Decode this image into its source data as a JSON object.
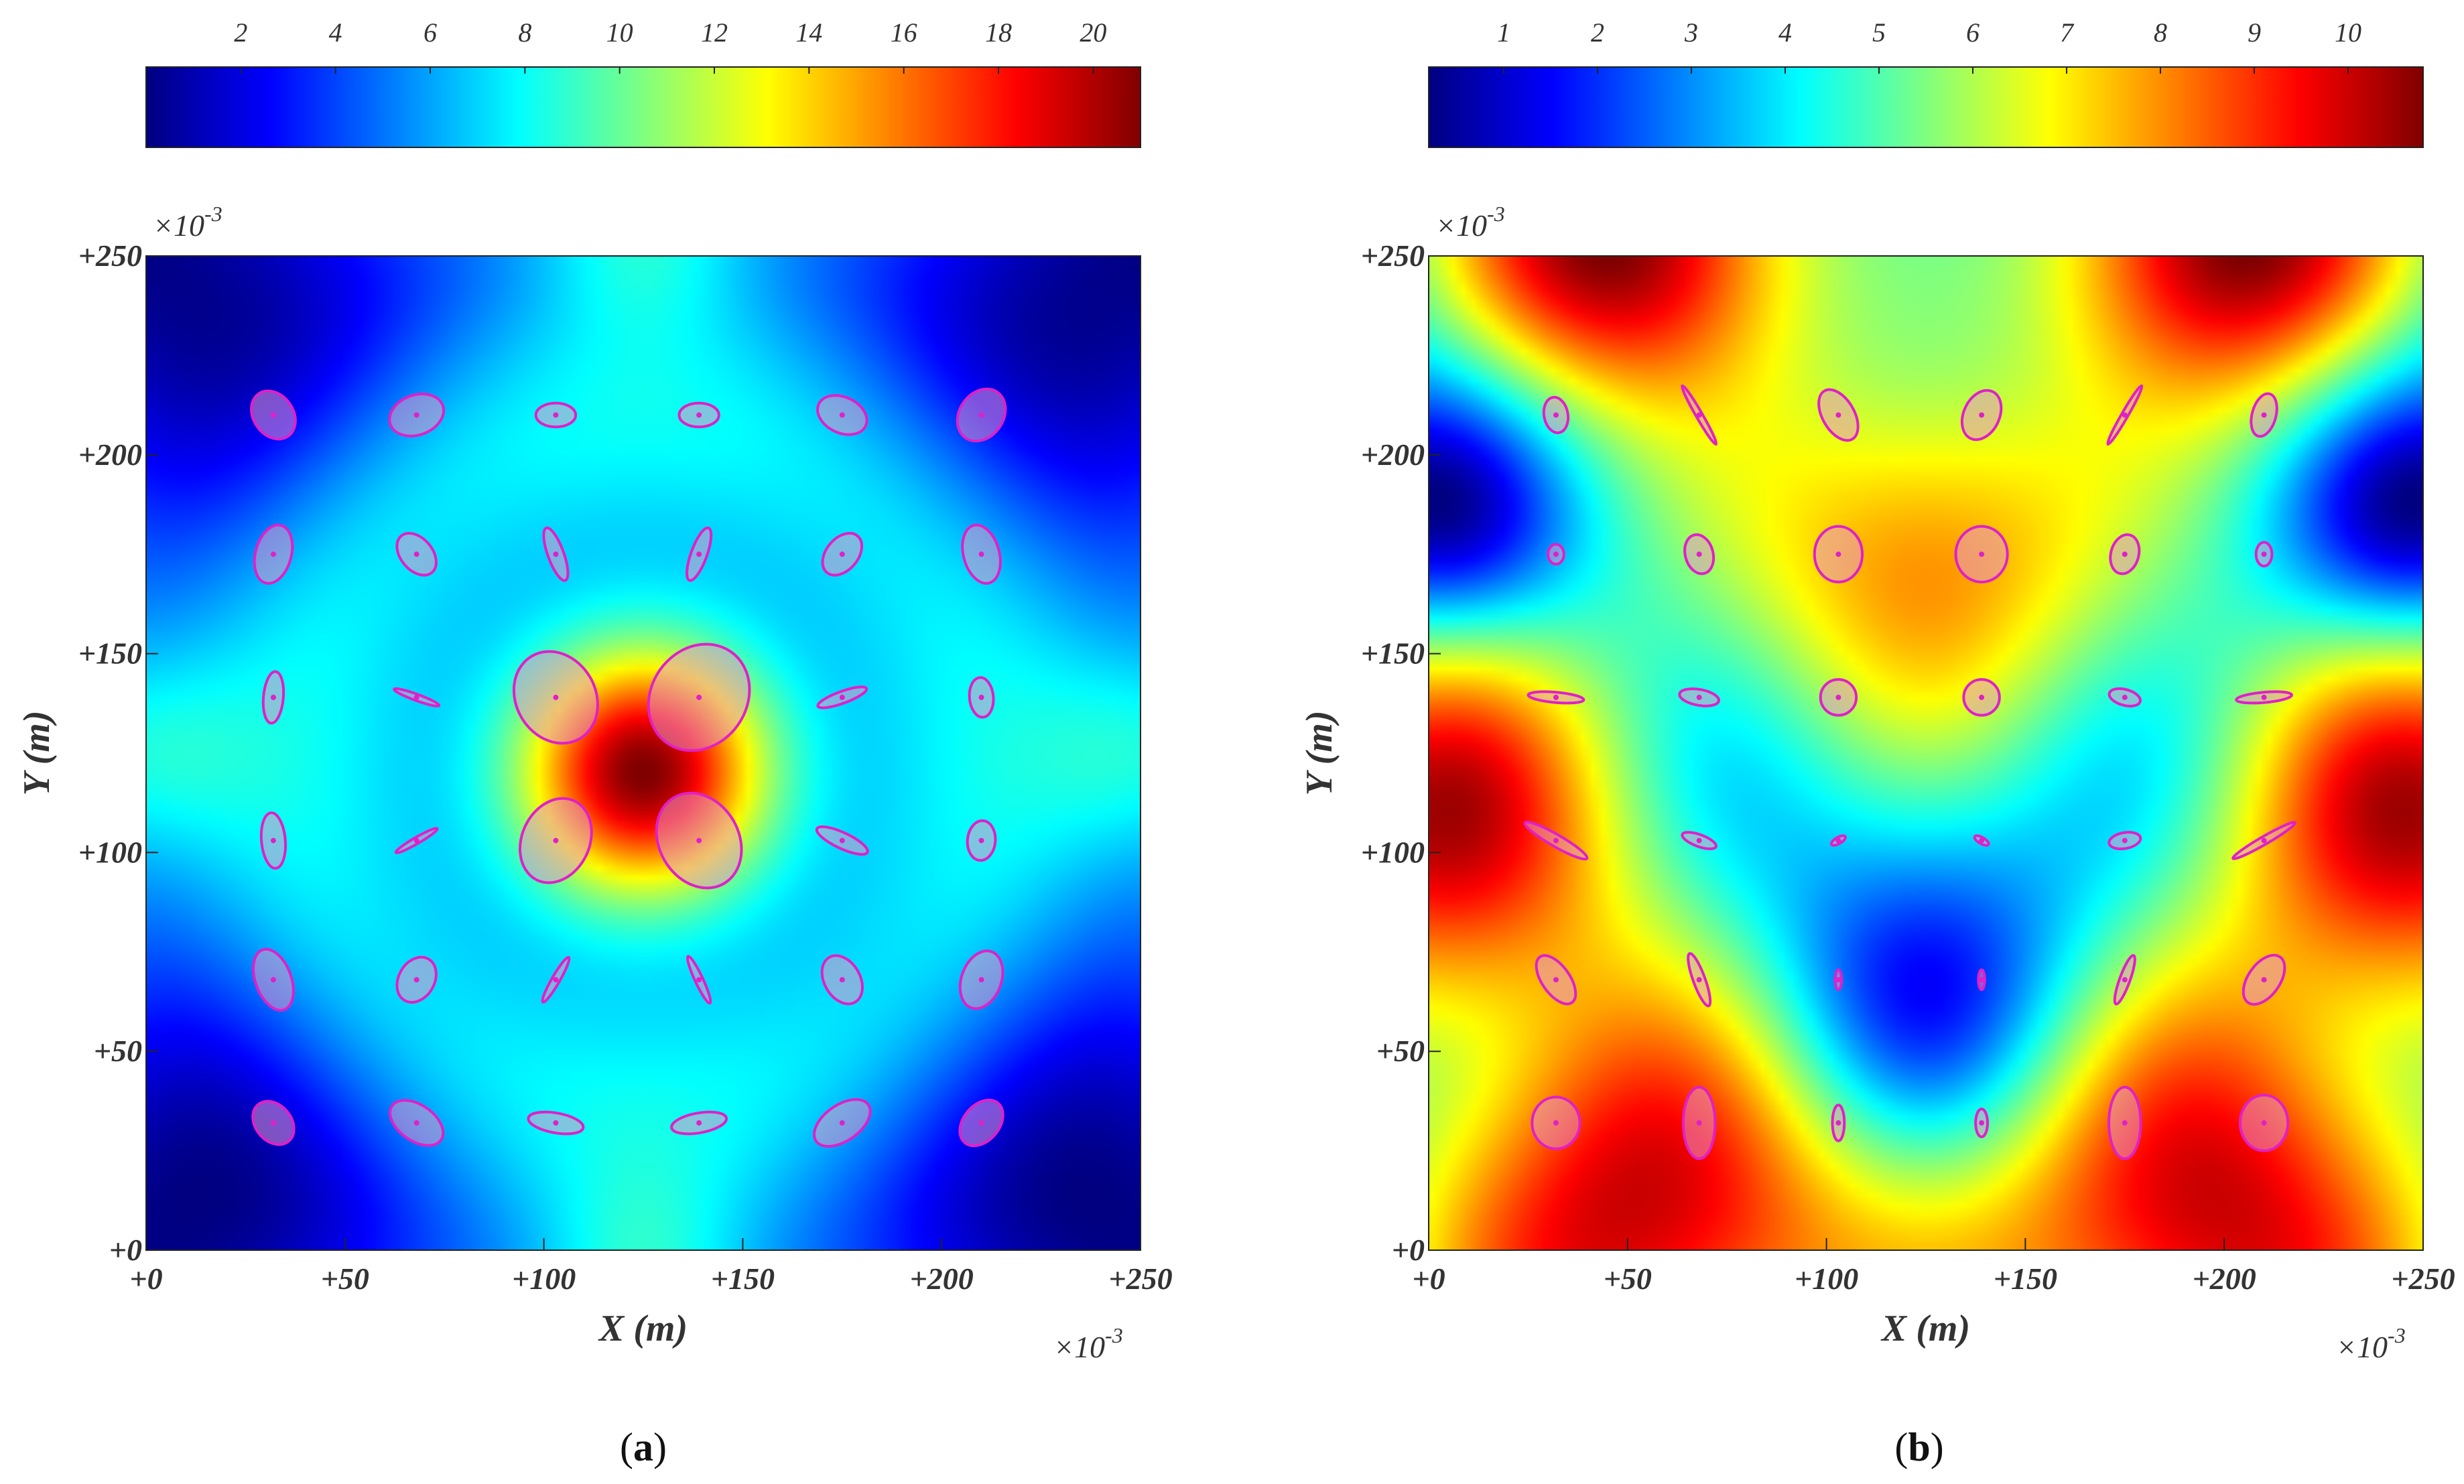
{
  "figure": {
    "panel_labels": [
      {
        "open": "(",
        "letter": "a",
        "close": ")"
      },
      {
        "open": "(",
        "letter": "b",
        "close": ")"
      }
    ]
  },
  "chart_data": [
    {
      "type": "heatmap",
      "title": "",
      "xlabel": "X (m)",
      "ylabel": "Y (m)",
      "x_tick_labels": [
        "+0",
        "+50",
        "+100",
        "+150",
        "+200",
        "+250"
      ],
      "y_tick_labels": [
        "+0",
        "+50",
        "+100",
        "+150",
        "+200",
        "+250"
      ],
      "x_exponent": "×10",
      "x_exponent_power": "-3",
      "y_exponent": "×10",
      "y_exponent_power": "-3",
      "xlim": [
        0,
        250
      ],
      "ylim": [
        0,
        250
      ],
      "colormap": "jet",
      "colorbar": {
        "position": "top",
        "range": [
          0,
          21
        ],
        "tick_labels": [
          "2",
          "4",
          "6",
          "8",
          "10",
          "12",
          "14",
          "16",
          "18",
          "20"
        ]
      },
      "field_features": [
        {
          "x": 125,
          "y": 120,
          "weight": 19.0,
          "sigma": 22
        },
        {
          "x": 0,
          "y": 0,
          "weight": -12.0,
          "sigma": 45
        },
        {
          "x": 250,
          "y": 0,
          "weight": -12.0,
          "sigma": 45
        },
        {
          "x": 0,
          "y": 250,
          "weight": -12.0,
          "sigma": 45
        },
        {
          "x": 250,
          "y": 250,
          "weight": -12.0,
          "sigma": 45
        },
        {
          "x": 125,
          "y": 255,
          "weight": 4.0,
          "sigma": 18
        },
        {
          "x": 125,
          "y": -5,
          "weight": 4.0,
          "sigma": 18
        },
        {
          "x": 0,
          "y": 125,
          "weight": 3.5,
          "sigma": 18
        },
        {
          "x": 250,
          "y": 125,
          "weight": 3.5,
          "sigma": 18
        }
      ],
      "ellipses": [
        {
          "x": 32,
          "y": 210,
          "rx": 5,
          "ry": 6.5,
          "angle": -35
        },
        {
          "x": 68,
          "y": 210,
          "rx": 7,
          "ry": 5,
          "angle": -20
        },
        {
          "x": 103,
          "y": 210,
          "rx": 5,
          "ry": 3,
          "angle": 0
        },
        {
          "x": 139,
          "y": 210,
          "rx": 5,
          "ry": 3,
          "angle": 0
        },
        {
          "x": 175,
          "y": 210,
          "rx": 6.5,
          "ry": 4.5,
          "angle": 25
        },
        {
          "x": 210,
          "y": 210,
          "rx": 5.5,
          "ry": 7,
          "angle": 35
        },
        {
          "x": 32,
          "y": 175,
          "rx": 4.5,
          "ry": 7.5,
          "angle": 15
        },
        {
          "x": 68,
          "y": 175,
          "rx": 4,
          "ry": 6,
          "angle": -40
        },
        {
          "x": 103,
          "y": 175,
          "rx": 2,
          "ry": 7,
          "angle": -20
        },
        {
          "x": 139,
          "y": 175,
          "rx": 2,
          "ry": 7,
          "angle": 20
        },
        {
          "x": 175,
          "y": 175,
          "rx": 4,
          "ry": 6,
          "angle": 40
        },
        {
          "x": 210,
          "y": 175,
          "rx": 4.5,
          "ry": 7.5,
          "angle": -15
        },
        {
          "x": 32,
          "y": 139,
          "rx": 2.5,
          "ry": 6.5,
          "angle": 5
        },
        {
          "x": 68,
          "y": 139,
          "rx": 0.8,
          "ry": 6,
          "angle": -70
        },
        {
          "x": 103,
          "y": 139,
          "rx": 10,
          "ry": 12,
          "angle": -30
        },
        {
          "x": 139,
          "y": 139,
          "rx": 12,
          "ry": 14,
          "angle": 35
        },
        {
          "x": 175,
          "y": 139,
          "rx": 1.5,
          "ry": 6.5,
          "angle": 70
        },
        {
          "x": 210,
          "y": 139,
          "rx": 3,
          "ry": 5,
          "angle": -5
        },
        {
          "x": 32,
          "y": 103,
          "rx": 3,
          "ry": 7,
          "angle": -5
        },
        {
          "x": 68,
          "y": 103,
          "rx": 0.8,
          "ry": 6,
          "angle": 60
        },
        {
          "x": 103,
          "y": 103,
          "rx": 8.5,
          "ry": 11,
          "angle": 25
        },
        {
          "x": 139,
          "y": 103,
          "rx": 10,
          "ry": 12.5,
          "angle": -30
        },
        {
          "x": 175,
          "y": 103,
          "rx": 2,
          "ry": 7,
          "angle": -65
        },
        {
          "x": 210,
          "y": 103,
          "rx": 3.5,
          "ry": 5,
          "angle": 5
        },
        {
          "x": 32,
          "y": 68,
          "rx": 4.5,
          "ry": 8,
          "angle": -20
        },
        {
          "x": 68,
          "y": 68,
          "rx": 4.5,
          "ry": 6,
          "angle": 30
        },
        {
          "x": 103,
          "y": 68,
          "rx": 1,
          "ry": 6.5,
          "angle": 30
        },
        {
          "x": 139,
          "y": 68,
          "rx": 1,
          "ry": 6.5,
          "angle": -25
        },
        {
          "x": 175,
          "y": 68,
          "rx": 4.5,
          "ry": 6.5,
          "angle": -30
        },
        {
          "x": 210,
          "y": 68,
          "rx": 5,
          "ry": 7.5,
          "angle": 20
        },
        {
          "x": 32,
          "y": 32,
          "rx": 4.5,
          "ry": 6,
          "angle": -40
        },
        {
          "x": 68,
          "y": 32,
          "rx": 4.5,
          "ry": 7.5,
          "angle": -55
        },
        {
          "x": 103,
          "y": 32,
          "rx": 2.5,
          "ry": 7,
          "angle": -80
        },
        {
          "x": 139,
          "y": 32,
          "rx": 2.5,
          "ry": 7,
          "angle": 80
        },
        {
          "x": 175,
          "y": 32,
          "rx": 4.5,
          "ry": 8,
          "angle": 55
        },
        {
          "x": 210,
          "y": 32,
          "rx": 4.5,
          "ry": 6.5,
          "angle": 40
        }
      ]
    },
    {
      "type": "heatmap",
      "title": "",
      "xlabel": "X (m)",
      "ylabel": "Y (m)",
      "x_tick_labels": [
        "+0",
        "+50",
        "+100",
        "+150",
        "+200",
        "+250"
      ],
      "y_tick_labels": [
        "+0",
        "+50",
        "+100",
        "+150",
        "+200",
        "+250"
      ],
      "x_exponent": "×10",
      "x_exponent_power": "-3",
      "y_exponent": "×10",
      "y_exponent_power": "-3",
      "xlim": [
        0,
        250
      ],
      "ylim": [
        0,
        250
      ],
      "colormap": "jet",
      "colorbar": {
        "position": "top",
        "range": [
          0.2,
          10.8
        ],
        "tick_labels": [
          "1",
          "2",
          "3",
          "4",
          "5",
          "6",
          "7",
          "8",
          "9",
          "10"
        ]
      },
      "field_features": [
        {
          "x": 125,
          "y": 175,
          "weight": 5.0,
          "sigma": 35
        },
        {
          "x": 55,
          "y": 5,
          "weight": 6.5,
          "sigma": 45
        },
        {
          "x": 195,
          "y": 5,
          "weight": 6.5,
          "sigma": 45
        },
        {
          "x": 0,
          "y": 110,
          "weight": 6.0,
          "sigma": 38
        },
        {
          "x": 250,
          "y": 110,
          "weight": 6.0,
          "sigma": 38
        },
        {
          "x": 50,
          "y": 255,
          "weight": 7.5,
          "sigma": 32
        },
        {
          "x": 200,
          "y": 255,
          "weight": 7.5,
          "sigma": 32
        },
        {
          "x": 0,
          "y": 185,
          "weight": -3.0,
          "sigma": 22
        },
        {
          "x": 250,
          "y": 185,
          "weight": -3.0,
          "sigma": 22
        },
        {
          "x": 125,
          "y": 60,
          "weight": -2.5,
          "sigma": 30
        }
      ],
      "ellipses": [
        {
          "x": 32,
          "y": 210,
          "rx": 3,
          "ry": 4.5,
          "angle": -10
        },
        {
          "x": 68,
          "y": 210,
          "rx": 0.8,
          "ry": 8.5,
          "angle": -30
        },
        {
          "x": 103,
          "y": 210,
          "rx": 4,
          "ry": 7,
          "angle": -30
        },
        {
          "x": 139,
          "y": 210,
          "rx": 4.5,
          "ry": 6.5,
          "angle": 25
        },
        {
          "x": 175,
          "y": 210,
          "rx": 0.8,
          "ry": 8.5,
          "angle": 30
        },
        {
          "x": 210,
          "y": 210,
          "rx": 3,
          "ry": 5.5,
          "angle": 15
        },
        {
          "x": 32,
          "y": 175,
          "rx": 2,
          "ry": 2.5,
          "angle": 0
        },
        {
          "x": 68,
          "y": 175,
          "rx": 3.5,
          "ry": 5,
          "angle": -15
        },
        {
          "x": 103,
          "y": 175,
          "rx": 6,
          "ry": 7,
          "angle": 0
        },
        {
          "x": 139,
          "y": 175,
          "rx": 6.5,
          "ry": 7,
          "angle": 0
        },
        {
          "x": 175,
          "y": 175,
          "rx": 3.5,
          "ry": 5,
          "angle": 15
        },
        {
          "x": 210,
          "y": 175,
          "rx": 2,
          "ry": 3,
          "angle": 0
        },
        {
          "x": 32,
          "y": 139,
          "rx": 1.3,
          "ry": 7,
          "angle": -85
        },
        {
          "x": 68,
          "y": 139,
          "rx": 2,
          "ry": 5,
          "angle": -80
        },
        {
          "x": 103,
          "y": 139,
          "rx": 4.5,
          "ry": 4.5,
          "angle": 0
        },
        {
          "x": 139,
          "y": 139,
          "rx": 4.5,
          "ry": 4.5,
          "angle": 0
        },
        {
          "x": 175,
          "y": 139,
          "rx": 2,
          "ry": 4,
          "angle": -75
        },
        {
          "x": 210,
          "y": 139,
          "rx": 1.3,
          "ry": 7,
          "angle": 85
        },
        {
          "x": 32,
          "y": 103,
          "rx": 1.5,
          "ry": 9,
          "angle": -60
        },
        {
          "x": 68,
          "y": 103,
          "rx": 1.5,
          "ry": 4.5,
          "angle": -70
        },
        {
          "x": 103,
          "y": 103,
          "rx": 0.8,
          "ry": 2,
          "angle": 60
        },
        {
          "x": 139,
          "y": 103,
          "rx": 0.8,
          "ry": 2,
          "angle": -60
        },
        {
          "x": 175,
          "y": 103,
          "rx": 2,
          "ry": 4,
          "angle": 80
        },
        {
          "x": 210,
          "y": 103,
          "rx": 1,
          "ry": 9,
          "angle": 60
        },
        {
          "x": 32,
          "y": 68,
          "rx": 3.5,
          "ry": 7,
          "angle": -35
        },
        {
          "x": 68,
          "y": 68,
          "rx": 1.5,
          "ry": 7,
          "angle": -20
        },
        {
          "x": 103,
          "y": 68,
          "rx": 0.8,
          "ry": 2.5,
          "angle": 0
        },
        {
          "x": 139,
          "y": 68,
          "rx": 0.8,
          "ry": 2.5,
          "angle": 0
        },
        {
          "x": 175,
          "y": 68,
          "rx": 1.3,
          "ry": 6.5,
          "angle": 20
        },
        {
          "x": 210,
          "y": 68,
          "rx": 4,
          "ry": 7,
          "angle": 35
        },
        {
          "x": 32,
          "y": 32,
          "rx": 6,
          "ry": 6.5,
          "angle": 0
        },
        {
          "x": 68,
          "y": 32,
          "rx": 4,
          "ry": 9,
          "angle": 0
        },
        {
          "x": 103,
          "y": 32,
          "rx": 1.5,
          "ry": 4.5,
          "angle": 0
        },
        {
          "x": 139,
          "y": 32,
          "rx": 1.5,
          "ry": 3.5,
          "angle": 0
        },
        {
          "x": 175,
          "y": 32,
          "rx": 4,
          "ry": 9,
          "angle": 0
        },
        {
          "x": 210,
          "y": 32,
          "rx": 6,
          "ry": 7,
          "angle": 0
        }
      ]
    }
  ]
}
